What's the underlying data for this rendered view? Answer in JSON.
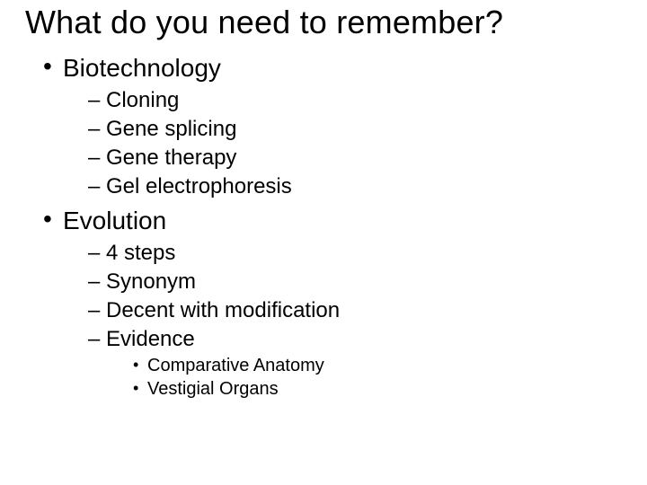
{
  "title": "What do you need to remember?",
  "topics": [
    {
      "label": "Biotechnology",
      "subs": [
        {
          "label": "Cloning"
        },
        {
          "label": "Gene splicing"
        },
        {
          "label": "Gene therapy"
        },
        {
          "label": "Gel electrophoresis"
        }
      ]
    },
    {
      "label": "Evolution",
      "subs": [
        {
          "label": "4 steps"
        },
        {
          "label": "Synonym"
        },
        {
          "label": "Decent with modification"
        },
        {
          "label": "Evidence",
          "subs": [
            {
              "label": "Comparative Anatomy"
            },
            {
              "label": "Vestigial Organs"
            }
          ]
        }
      ]
    }
  ],
  "style": {
    "background_color": "#ffffff",
    "text_color": "#000000",
    "font_family": "Arial",
    "title_fontsize_pt": 36,
    "level1_fontsize_pt": 28,
    "level2_fontsize_pt": 24,
    "level3_fontsize_pt": 20,
    "level1_bullet": "•",
    "level2_bullet": "–",
    "level3_bullet": "•"
  }
}
